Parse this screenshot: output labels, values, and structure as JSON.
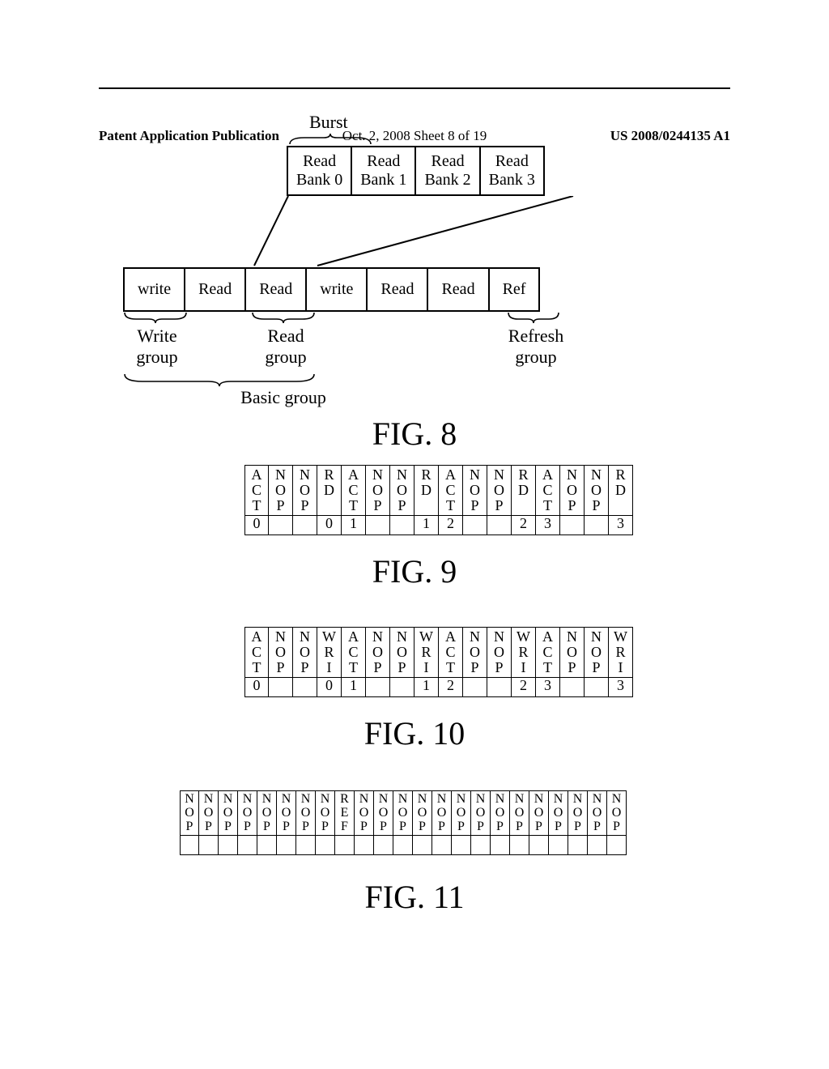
{
  "header": {
    "left": "Patent Application Publication",
    "middle": "Oct. 2, 2008  Sheet 8 of 19",
    "right": "US 2008/0244135 A1"
  },
  "fig8": {
    "burst_label": "Burst",
    "top_cells": [
      "Read\nBank 0",
      "Read\nBank 1",
      "Read\nBank 2",
      "Read\nBank 3"
    ],
    "mid_cells": [
      "write",
      "Read",
      "Read",
      "write",
      "Read",
      "Read",
      "Ref"
    ],
    "write_group": "Write\ngroup",
    "read_group": "Read\ngroup",
    "refresh_group": "Refresh\ngroup",
    "basic_group": "Basic group",
    "title": "FIG. 8"
  },
  "fig9": {
    "cols": [
      {
        "cmd": [
          "A",
          "C",
          "T"
        ],
        "idx": "0"
      },
      {
        "cmd": [
          "N",
          "O",
          "P"
        ],
        "idx": ""
      },
      {
        "cmd": [
          "N",
          "O",
          "P"
        ],
        "idx": ""
      },
      {
        "cmd": [
          "R",
          "D",
          ""
        ],
        "idx": "0"
      },
      {
        "cmd": [
          "A",
          "C",
          "T"
        ],
        "idx": "1"
      },
      {
        "cmd": [
          "N",
          "O",
          "P"
        ],
        "idx": ""
      },
      {
        "cmd": [
          "N",
          "O",
          "P"
        ],
        "idx": ""
      },
      {
        "cmd": [
          "R",
          "D",
          ""
        ],
        "idx": "1"
      },
      {
        "cmd": [
          "A",
          "C",
          "T"
        ],
        "idx": "2"
      },
      {
        "cmd": [
          "N",
          "O",
          "P"
        ],
        "idx": ""
      },
      {
        "cmd": [
          "N",
          "O",
          "P"
        ],
        "idx": ""
      },
      {
        "cmd": [
          "R",
          "D",
          ""
        ],
        "idx": "2"
      },
      {
        "cmd": [
          "A",
          "C",
          "T"
        ],
        "idx": "3"
      },
      {
        "cmd": [
          "N",
          "O",
          "P"
        ],
        "idx": ""
      },
      {
        "cmd": [
          "N",
          "O",
          "P"
        ],
        "idx": ""
      },
      {
        "cmd": [
          "R",
          "D",
          ""
        ],
        "idx": "3"
      }
    ],
    "title": "FIG. 9"
  },
  "fig10": {
    "cols": [
      {
        "cmd": [
          "A",
          "C",
          "T"
        ],
        "idx": "0"
      },
      {
        "cmd": [
          "N",
          "O",
          "P"
        ],
        "idx": ""
      },
      {
        "cmd": [
          "N",
          "O",
          "P"
        ],
        "idx": ""
      },
      {
        "cmd": [
          "W",
          "R",
          "I"
        ],
        "idx": "0"
      },
      {
        "cmd": [
          "A",
          "C",
          "T"
        ],
        "idx": "1"
      },
      {
        "cmd": [
          "N",
          "O",
          "P"
        ],
        "idx": ""
      },
      {
        "cmd": [
          "N",
          "O",
          "P"
        ],
        "idx": ""
      },
      {
        "cmd": [
          "W",
          "R",
          "I"
        ],
        "idx": "1"
      },
      {
        "cmd": [
          "A",
          "C",
          "T"
        ],
        "idx": "2"
      },
      {
        "cmd": [
          "N",
          "O",
          "P"
        ],
        "idx": ""
      },
      {
        "cmd": [
          "N",
          "O",
          "P"
        ],
        "idx": ""
      },
      {
        "cmd": [
          "W",
          "R",
          "I"
        ],
        "idx": "2"
      },
      {
        "cmd": [
          "A",
          "C",
          "T"
        ],
        "idx": "3"
      },
      {
        "cmd": [
          "N",
          "O",
          "P"
        ],
        "idx": ""
      },
      {
        "cmd": [
          "N",
          "O",
          "P"
        ],
        "idx": ""
      },
      {
        "cmd": [
          "W",
          "R",
          "I"
        ],
        "idx": "3"
      }
    ],
    "title": "FIG. 10"
  },
  "fig11": {
    "cols": [
      {
        "cmd": [
          "N",
          "O",
          "P"
        ],
        "idx": ""
      },
      {
        "cmd": [
          "N",
          "O",
          "P"
        ],
        "idx": ""
      },
      {
        "cmd": [
          "N",
          "O",
          "P"
        ],
        "idx": ""
      },
      {
        "cmd": [
          "N",
          "O",
          "P"
        ],
        "idx": ""
      },
      {
        "cmd": [
          "N",
          "O",
          "P"
        ],
        "idx": ""
      },
      {
        "cmd": [
          "N",
          "O",
          "P"
        ],
        "idx": ""
      },
      {
        "cmd": [
          "N",
          "O",
          "P"
        ],
        "idx": ""
      },
      {
        "cmd": [
          "N",
          "O",
          "P"
        ],
        "idx": ""
      },
      {
        "cmd": [
          "R",
          "E",
          "F"
        ],
        "idx": ""
      },
      {
        "cmd": [
          "N",
          "O",
          "P"
        ],
        "idx": ""
      },
      {
        "cmd": [
          "N",
          "O",
          "P"
        ],
        "idx": ""
      },
      {
        "cmd": [
          "N",
          "O",
          "P"
        ],
        "idx": ""
      },
      {
        "cmd": [
          "N",
          "O",
          "P"
        ],
        "idx": ""
      },
      {
        "cmd": [
          "N",
          "O",
          "P"
        ],
        "idx": ""
      },
      {
        "cmd": [
          "N",
          "O",
          "P"
        ],
        "idx": ""
      },
      {
        "cmd": [
          "N",
          "O",
          "P"
        ],
        "idx": ""
      },
      {
        "cmd": [
          "N",
          "O",
          "P"
        ],
        "idx": ""
      },
      {
        "cmd": [
          "N",
          "O",
          "P"
        ],
        "idx": ""
      },
      {
        "cmd": [
          "N",
          "O",
          "P"
        ],
        "idx": ""
      },
      {
        "cmd": [
          "N",
          "O",
          "P"
        ],
        "idx": ""
      },
      {
        "cmd": [
          "N",
          "O",
          "P"
        ],
        "idx": ""
      },
      {
        "cmd": [
          "N",
          "O",
          "P"
        ],
        "idx": ""
      },
      {
        "cmd": [
          "N",
          "O",
          "P"
        ],
        "idx": ""
      }
    ],
    "title": "FIG. 11"
  }
}
